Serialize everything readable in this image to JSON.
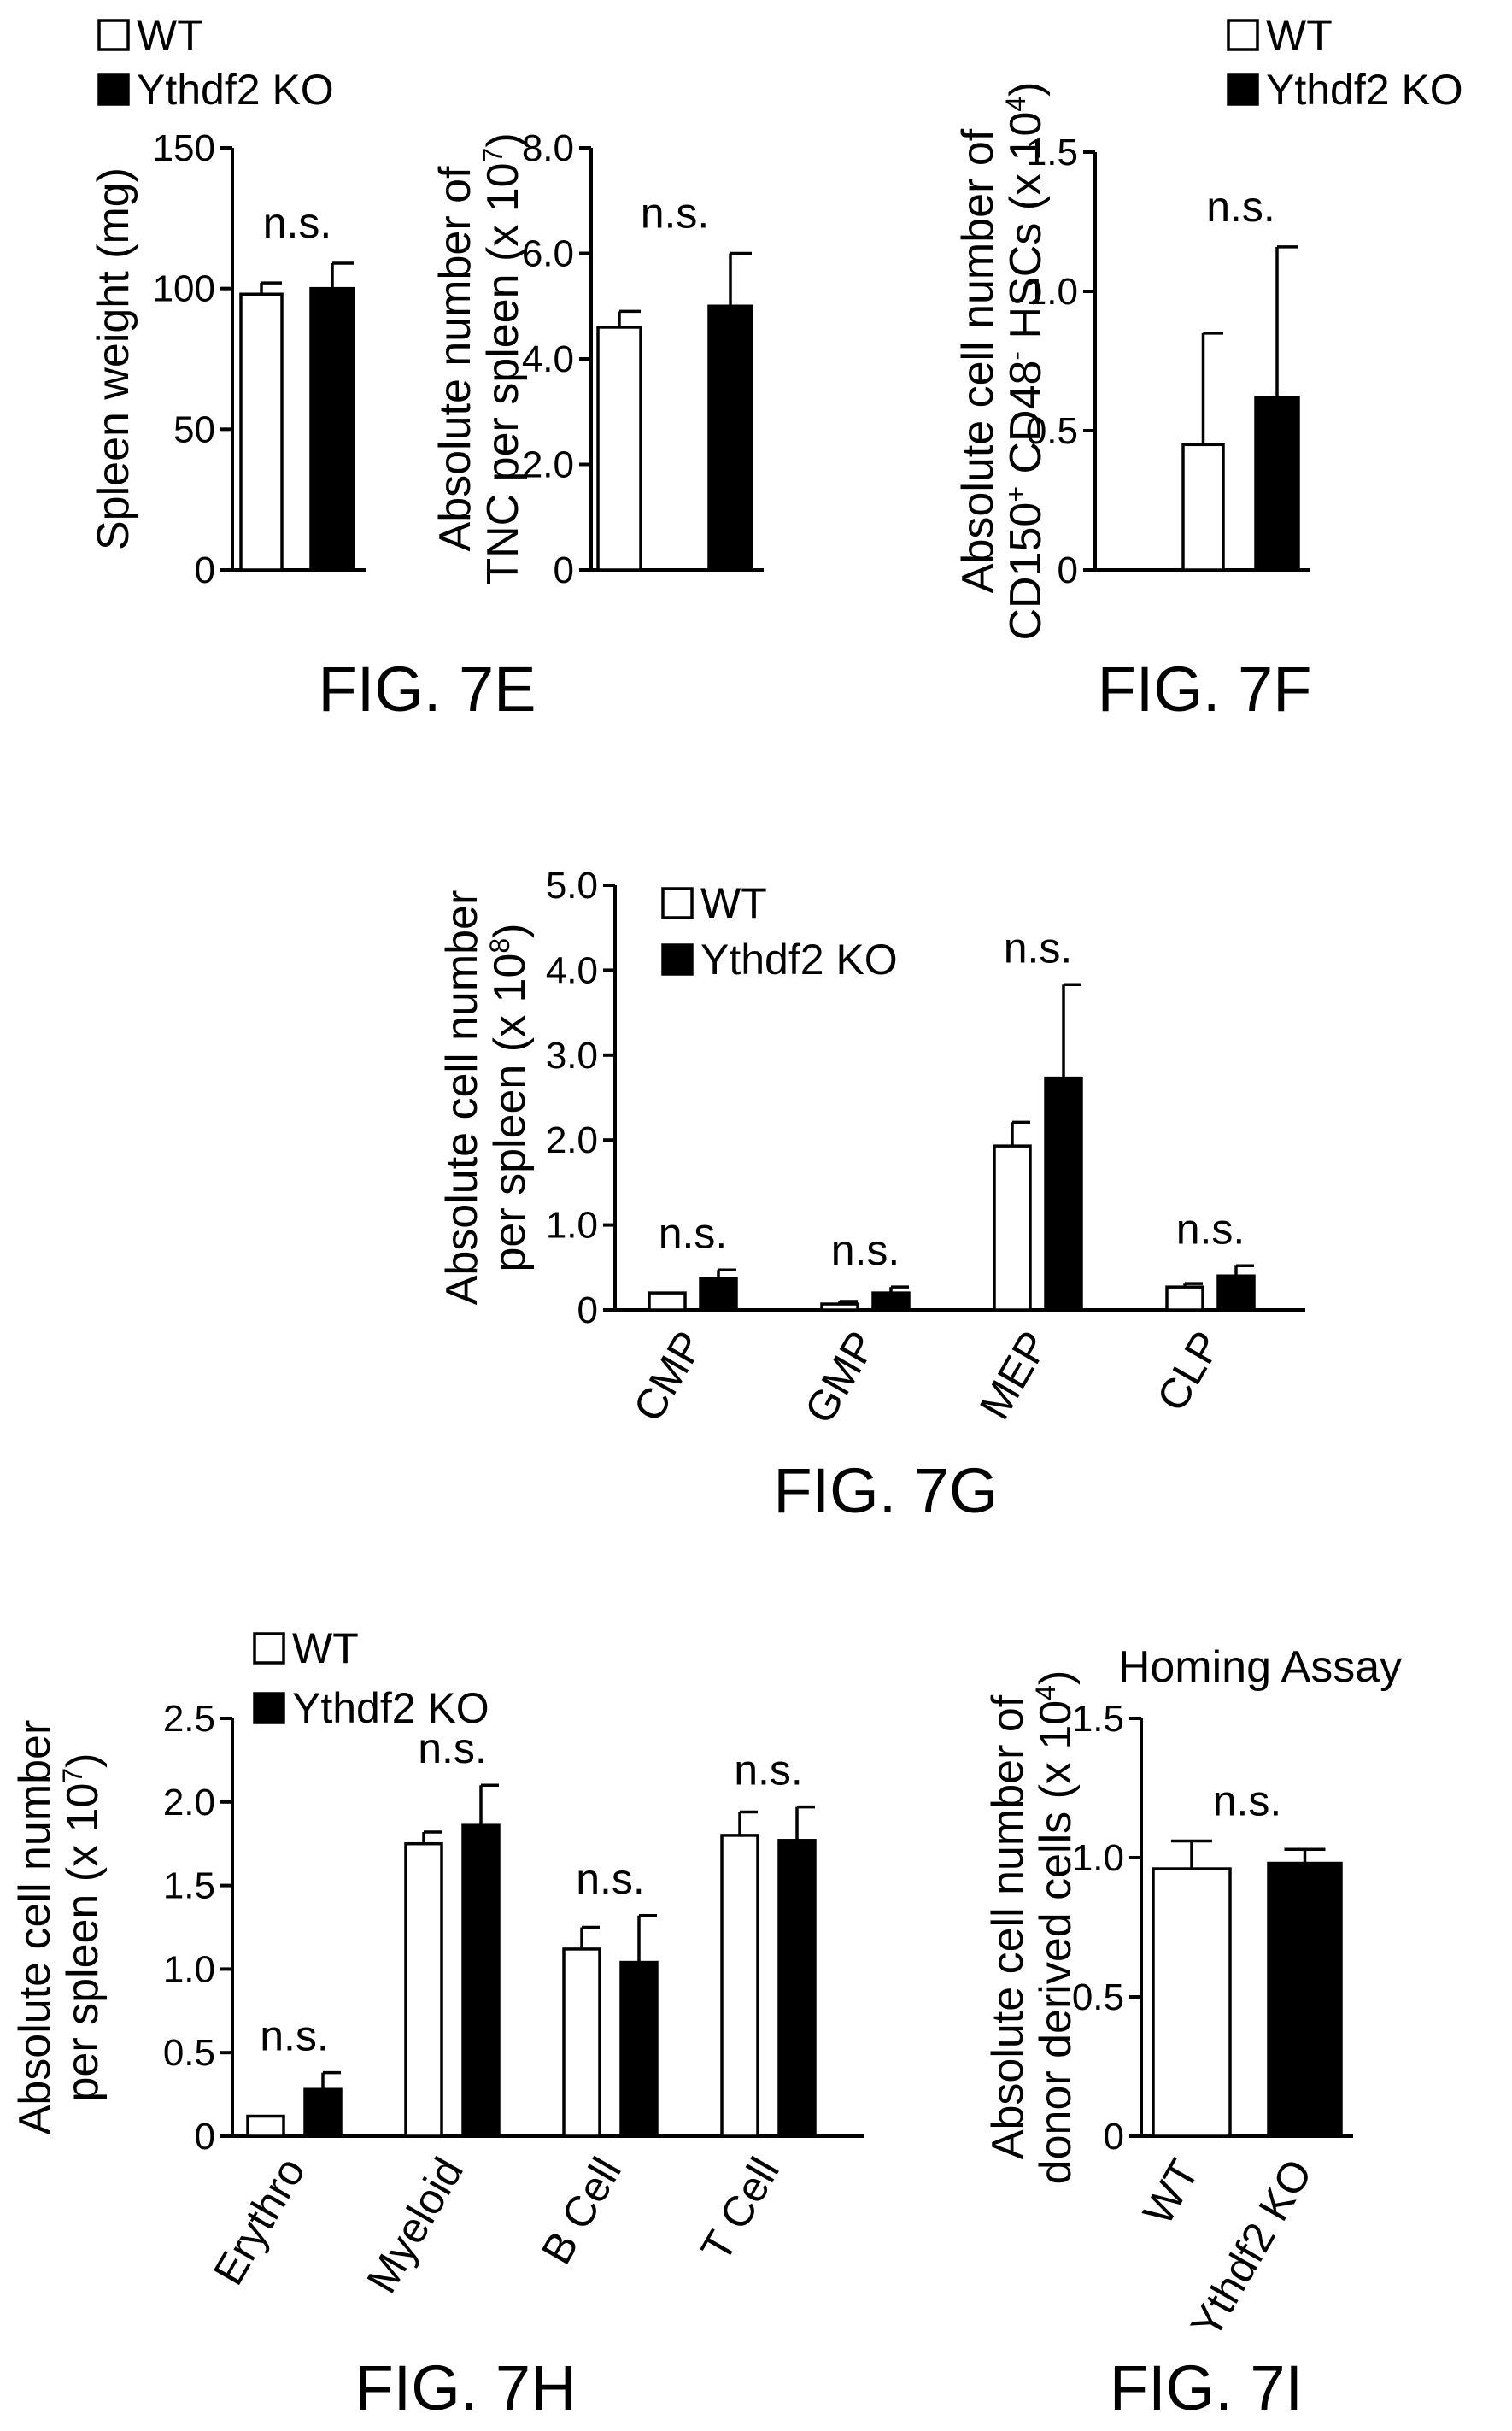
{
  "legend": {
    "wt": "WT",
    "ko": "Ythdf2 KO"
  },
  "figures": {
    "7E": "FIG. 7E",
    "7F": "FIG. 7F",
    "7G": "FIG. 7G",
    "7H": "FIG. 7H",
    "7I": "FIG. 7I"
  },
  "chart_data": [
    {
      "id": "fig7e-spleen-weight",
      "type": "bar",
      "ylabel": "Spleen weight (mg)",
      "ylim": [
        0,
        150
      ],
      "yticks": [
        0,
        50,
        100,
        150
      ],
      "ytick_labels": [
        "0",
        "50",
        "100",
        "150"
      ],
      "categories": [
        ""
      ],
      "series": [
        {
          "name": "WT",
          "values": [
            98
          ],
          "errors": [
            4
          ]
        },
        {
          "name": "Ythdf2 KO",
          "values": [
            100
          ],
          "errors": [
            9
          ]
        }
      ],
      "annotations": [
        "n.s."
      ]
    },
    {
      "id": "fig7e-tnc",
      "type": "bar",
      "ylabel_lines": [
        "Absolute number of",
        "TNC per spleen (x 10",
        "7",
        ")"
      ],
      "ylim": [
        0,
        8.0
      ],
      "yticks": [
        0,
        2.0,
        4.0,
        6.0,
        8.0
      ],
      "ytick_labels": [
        "0",
        "2.0",
        "4.0",
        "6.0",
        "8.0"
      ],
      "categories": [
        ""
      ],
      "series": [
        {
          "name": "WT",
          "values": [
            4.6
          ],
          "errors": [
            0.3
          ]
        },
        {
          "name": "Ythdf2 KO",
          "values": [
            5.0
          ],
          "errors": [
            1.0
          ]
        }
      ],
      "annotations": [
        "n.s."
      ]
    },
    {
      "id": "fig7f-hsc",
      "type": "bar",
      "ylabel_lines": [
        "Absolute cell number of",
        "CD150",
        "+",
        " CD48",
        "-",
        " HSCs (x 10",
        "4",
        ")"
      ],
      "ylim": [
        0,
        1.5
      ],
      "yticks": [
        0,
        0.5,
        1.0,
        1.5
      ],
      "ytick_labels": [
        "0",
        "0.5",
        "1.0",
        "1.5"
      ],
      "categories": [
        ""
      ],
      "series": [
        {
          "name": "WT",
          "values": [
            0.45
          ],
          "errors": [
            0.4
          ]
        },
        {
          "name": "Ythdf2 KO",
          "values": [
            0.62
          ],
          "errors": [
            0.54
          ]
        }
      ],
      "annotations": [
        "n.s."
      ]
    },
    {
      "id": "fig7g-progenitors",
      "type": "bar",
      "ylabel_lines": [
        "Absolute cell number",
        "per spleen (x 10",
        "8",
        ")"
      ],
      "ylim": [
        0,
        5.0
      ],
      "yticks": [
        0,
        1.0,
        2.0,
        3.0,
        4.0,
        5.0
      ],
      "ytick_labels": [
        "0",
        "1.0",
        "2.0",
        "3.0",
        "4.0",
        "5.0"
      ],
      "categories": [
        "CMP",
        "GMP",
        "MEP",
        "CLP"
      ],
      "series": [
        {
          "name": "WT",
          "values": [
            0.2,
            0.07,
            1.93,
            0.27
          ],
          "errors": [
            0,
            0.03,
            0.28,
            0.04
          ]
        },
        {
          "name": "Ythdf2 KO",
          "values": [
            0.37,
            0.2,
            2.73,
            0.4
          ],
          "errors": [
            0.1,
            0.07,
            1.1,
            0.12
          ]
        }
      ],
      "annotations": [
        "n.s.",
        "n.s.",
        "n.s.",
        "n.s."
      ]
    },
    {
      "id": "fig7h-lineages",
      "type": "bar",
      "ylabel_lines": [
        "Absolute cell number",
        "per spleen (x 10",
        "7",
        ")"
      ],
      "ylim": [
        0,
        2.5
      ],
      "yticks": [
        0,
        0.5,
        1.0,
        1.5,
        2.0,
        2.5
      ],
      "ytick_labels": [
        "0",
        "0.5",
        "1.0",
        "1.5",
        "2.0",
        "2.5"
      ],
      "categories": [
        "Erythro",
        "Myeloid",
        "B Cell",
        "T Cell"
      ],
      "series": [
        {
          "name": "WT",
          "values": [
            0.12,
            1.75,
            1.12,
            1.8
          ],
          "errors": [
            0,
            0.07,
            0.13,
            0.14
          ]
        },
        {
          "name": "Ythdf2 KO",
          "values": [
            0.28,
            1.86,
            1.04,
            1.77
          ],
          "errors": [
            0.1,
            0.24,
            0.28,
            0.2
          ]
        }
      ],
      "annotations": [
        "n.s.",
        "n.s.",
        "n.s.",
        "n.s."
      ]
    },
    {
      "id": "fig7i-homing",
      "type": "bar",
      "title": "Homing Assay",
      "ylabel_lines": [
        "Absolute cell number of",
        "donor derived cells (x 10",
        "4",
        ")"
      ],
      "ylim": [
        0,
        1.5
      ],
      "yticks": [
        0,
        0.5,
        1.0,
        1.5
      ],
      "ytick_labels": [
        "0",
        "0.5",
        "1.0",
        "1.5"
      ],
      "categories": [
        "WT",
        "Ythdf2 KO"
      ],
      "values": [
        0.96,
        0.98
      ],
      "errors": [
        0.1,
        0.05
      ],
      "annotations": [
        "n.s."
      ]
    }
  ]
}
